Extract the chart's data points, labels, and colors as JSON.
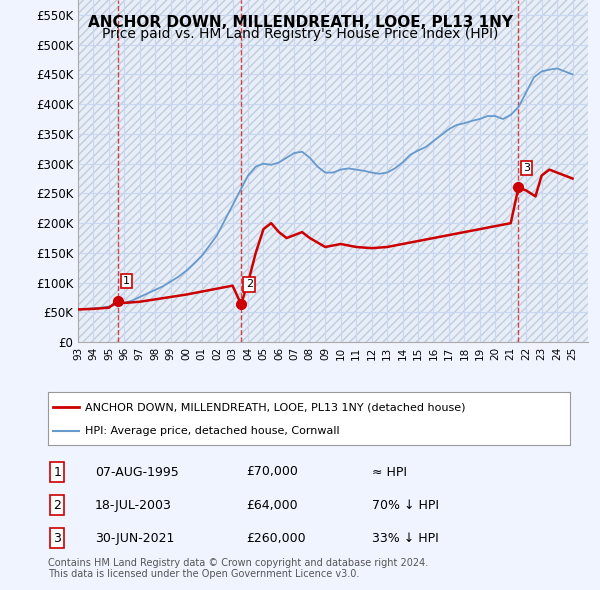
{
  "title": "ANCHOR DOWN, MILLENDREATH, LOOE, PL13 1NY",
  "subtitle": "Price paid vs. HM Land Registry's House Price Index (HPI)",
  "title_fontsize": 11,
  "subtitle_fontsize": 10,
  "xlim": [
    1993.0,
    2026.0
  ],
  "ylim": [
    0,
    575000
  ],
  "yticks": [
    0,
    50000,
    100000,
    150000,
    200000,
    250000,
    300000,
    350000,
    400000,
    450000,
    500000,
    550000
  ],
  "ytick_labels": [
    "£0",
    "£50K",
    "£100K",
    "£150K",
    "£200K",
    "£250K",
    "£300K",
    "£350K",
    "£400K",
    "£450K",
    "£500K",
    "£550K"
  ],
  "xticks": [
    1993,
    1994,
    1995,
    1996,
    1997,
    1998,
    1999,
    2000,
    2001,
    2002,
    2003,
    2004,
    2005,
    2006,
    2007,
    2008,
    2009,
    2010,
    2011,
    2012,
    2013,
    2014,
    2015,
    2016,
    2017,
    2018,
    2019,
    2020,
    2021,
    2022,
    2023,
    2024,
    2025
  ],
  "background_color": "#f0f4ff",
  "plot_bg_color": "#ffffff",
  "grid_color": "#c8d8f0",
  "hatch_color": "#d0ddf0",
  "red_color": "#cc0000",
  "blue_color": "#6699cc",
  "legend_box_color": "#ffffff",
  "sale_points": [
    {
      "year": 1995.6,
      "price": 70000,
      "label": "1"
    },
    {
      "year": 2003.55,
      "price": 64000,
      "label": "2"
    },
    {
      "year": 2021.5,
      "price": 260000,
      "label": "3"
    }
  ],
  "hpi_line": {
    "x": [
      1993,
      1993.5,
      1994,
      1994.5,
      1995,
      1995.5,
      1996,
      1996.5,
      1997,
      1997.5,
      1998,
      1998.5,
      1999,
      1999.5,
      2000,
      2000.5,
      2001,
      2001.5,
      2002,
      2002.5,
      2003,
      2003.5,
      2004,
      2004.5,
      2005,
      2005.5,
      2006,
      2006.5,
      2007,
      2007.5,
      2008,
      2008.5,
      2009,
      2009.5,
      2010,
      2010.5,
      2011,
      2011.5,
      2012,
      2012.5,
      2013,
      2013.5,
      2014,
      2014.5,
      2015,
      2015.5,
      2016,
      2016.5,
      2017,
      2017.5,
      2018,
      2018.5,
      2019,
      2019.5,
      2020,
      2020.5,
      2021,
      2021.5,
      2022,
      2022.5,
      2023,
      2023.5,
      2024,
      2024.5,
      2025
    ],
    "y": [
      55000,
      56000,
      57000,
      58000,
      60000,
      63000,
      66000,
      70000,
      76000,
      82000,
      88000,
      94000,
      102000,
      110000,
      120000,
      132000,
      145000,
      162000,
      180000,
      205000,
      230000,
      255000,
      280000,
      295000,
      300000,
      298000,
      302000,
      310000,
      318000,
      320000,
      310000,
      295000,
      285000,
      285000,
      290000,
      292000,
      290000,
      288000,
      285000,
      283000,
      285000,
      292000,
      302000,
      315000,
      322000,
      328000,
      338000,
      348000,
      358000,
      365000,
      368000,
      372000,
      375000,
      380000,
      380000,
      375000,
      382000,
      395000,
      420000,
      445000,
      455000,
      458000,
      460000,
      455000,
      450000
    ]
  },
  "red_line": {
    "x": [
      1993,
      1994,
      1995,
      1995.6,
      1996,
      1997,
      1998,
      1999,
      2000,
      2001,
      2002,
      2003,
      2003.55,
      2004,
      2004.5,
      2005,
      2005.5,
      2006,
      2006.5,
      2007,
      2007.5,
      2008,
      2009,
      2010,
      2011,
      2012,
      2013,
      2014,
      2015,
      2016,
      2017,
      2018,
      2019,
      2020,
      2021,
      2021.5,
      2022,
      2022.3,
      2022.6,
      2023,
      2023.5,
      2024,
      2024.5,
      2025
    ],
    "y": [
      55000,
      56000,
      58000,
      70000,
      66000,
      68000,
      72000,
      76000,
      80000,
      85000,
      90000,
      95000,
      64000,
      100000,
      150000,
      190000,
      200000,
      185000,
      175000,
      180000,
      185000,
      175000,
      160000,
      165000,
      160000,
      158000,
      160000,
      165000,
      170000,
      175000,
      180000,
      185000,
      190000,
      195000,
      200000,
      260000,
      255000,
      250000,
      245000,
      280000,
      290000,
      285000,
      280000,
      275000
    ]
  },
  "legend_items": [
    {
      "label": "ANCHOR DOWN, MILLENDREATH, LOOE, PL13 1NY (detached house)",
      "color": "#cc0000",
      "lw": 2
    },
    {
      "label": "HPI: Average price, detached house, Cornwall",
      "color": "#6699cc",
      "lw": 1.5
    }
  ],
  "table_rows": [
    {
      "num": "1",
      "date": "07-AUG-1995",
      "price": "£70,000",
      "rel": "≈ HPI"
    },
    {
      "num": "2",
      "date": "18-JUL-2003",
      "price": "£64,000",
      "rel": "70% ↓ HPI"
    },
    {
      "num": "3",
      "date": "30-JUN-2021",
      "price": "£260,000",
      "rel": "33% ↓ HPI"
    }
  ],
  "footnote": "Contains HM Land Registry data © Crown copyright and database right 2024.\nThis data is licensed under the Open Government Licence v3.0.",
  "dashed_vline_years": [
    1995.6,
    2003.55,
    2021.5
  ]
}
